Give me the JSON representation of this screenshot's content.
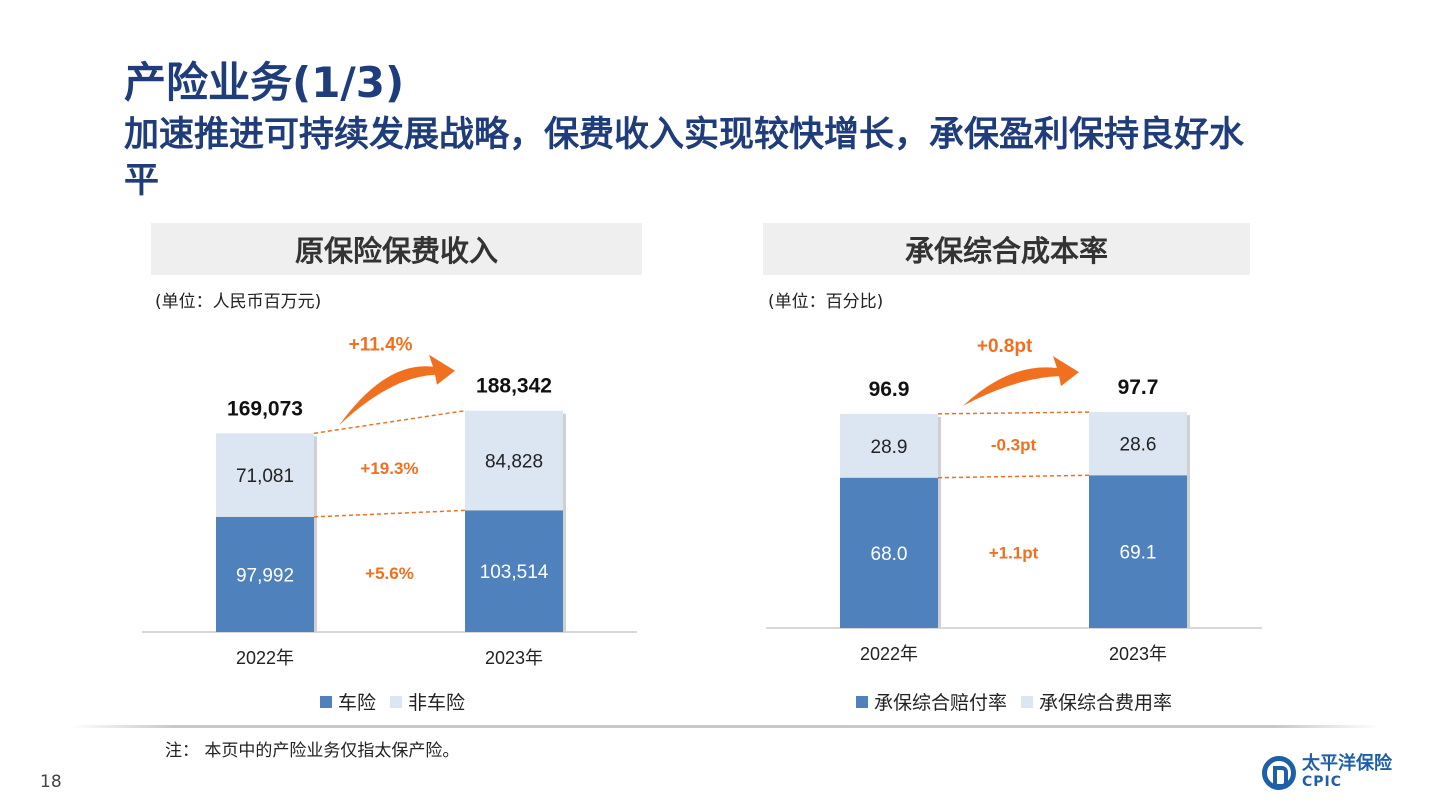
{
  "header": {
    "title": "产险业务(1/3)",
    "subtitle": "加速推进可持续发展战略，保费收入实现较快增长，承保盈利保持良好水平"
  },
  "colors": {
    "dark_series": "#4f81bd",
    "light_series": "#dce6f2",
    "accent": "#f07020",
    "title": "#1f3d7a"
  },
  "chart_data": [
    {
      "type": "bar",
      "stacked": true,
      "title": "原保险保费收入",
      "unit_label": "(单位：人民币百万元)",
      "categories": [
        "2022年",
        "2023年"
      ],
      "series": [
        {
          "name": "车险",
          "values": [
            97992,
            103514
          ],
          "value_labels": [
            "97,992",
            "103,514"
          ],
          "growth_label": "+5.6%"
        },
        {
          "name": "非车险",
          "values": [
            71081,
            84828
          ],
          "value_labels": [
            "71,081",
            "84,828"
          ],
          "growth_label": "+19.3%"
        }
      ],
      "totals": [
        169073,
        188342
      ],
      "total_labels": [
        "169,073",
        "188,342"
      ],
      "total_growth_label": "+11.4%",
      "ylim": [
        0,
        200000
      ]
    },
    {
      "type": "bar",
      "stacked": true,
      "title": "承保综合成本率",
      "unit_label": "(单位：百分比)",
      "categories": [
        "2022年",
        "2023年"
      ],
      "series": [
        {
          "name": "承保综合赔付率",
          "values": [
            68.0,
            69.1
          ],
          "value_labels": [
            "68.0",
            "69.1"
          ],
          "growth_label": "+1.1pt"
        },
        {
          "name": "承保综合费用率",
          "values": [
            28.9,
            28.6
          ],
          "value_labels": [
            "28.9",
            "28.6"
          ],
          "growth_label": "-0.3pt"
        }
      ],
      "totals": [
        96.9,
        97.7
      ],
      "total_labels": [
        "96.9",
        "97.7"
      ],
      "total_growth_label": "+0.8pt",
      "ylim": [
        0,
        100
      ]
    }
  ],
  "footer": {
    "note": "注：  本页中的产险业务仅指太保产险。",
    "page_number": "18",
    "logo_cn": "太平洋保险",
    "logo_en": "CPIC"
  }
}
